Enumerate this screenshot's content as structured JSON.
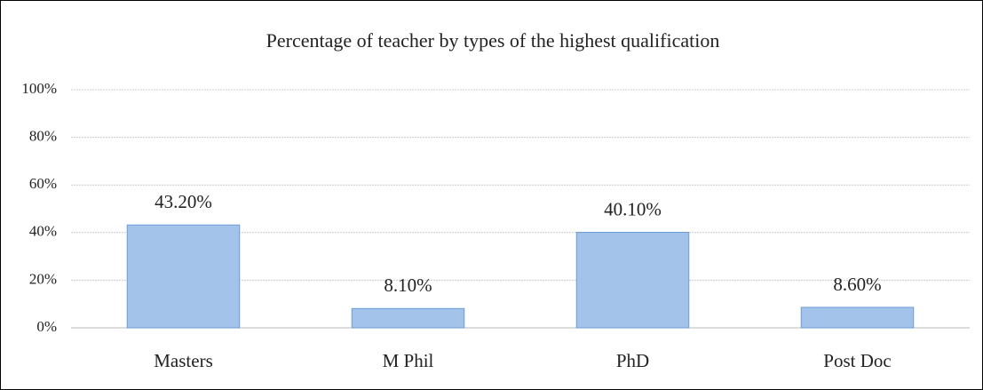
{
  "chart_data": {
    "type": "bar",
    "title": "Percentage of teacher by types of the highest  qualification",
    "categories": [
      "Masters",
      "M Phil",
      "PhD",
      "Post Doc"
    ],
    "values": [
      43.2,
      8.1,
      40.1,
      8.6
    ],
    "value_labels": [
      "43.20%",
      "8.10%",
      "40.10%",
      "8.60%"
    ],
    "color": "#a4c3ea",
    "ylim": [
      0,
      100
    ],
    "yticks": [
      {
        "value": 0,
        "label": "0%"
      },
      {
        "value": 20,
        "label": "20%"
      },
      {
        "value": 40,
        "label": "40%"
      },
      {
        "value": 60,
        "label": "60%"
      },
      {
        "value": 80,
        "label": "80%"
      },
      {
        "value": 100,
        "label": "100%"
      }
    ],
    "grid": true
  }
}
